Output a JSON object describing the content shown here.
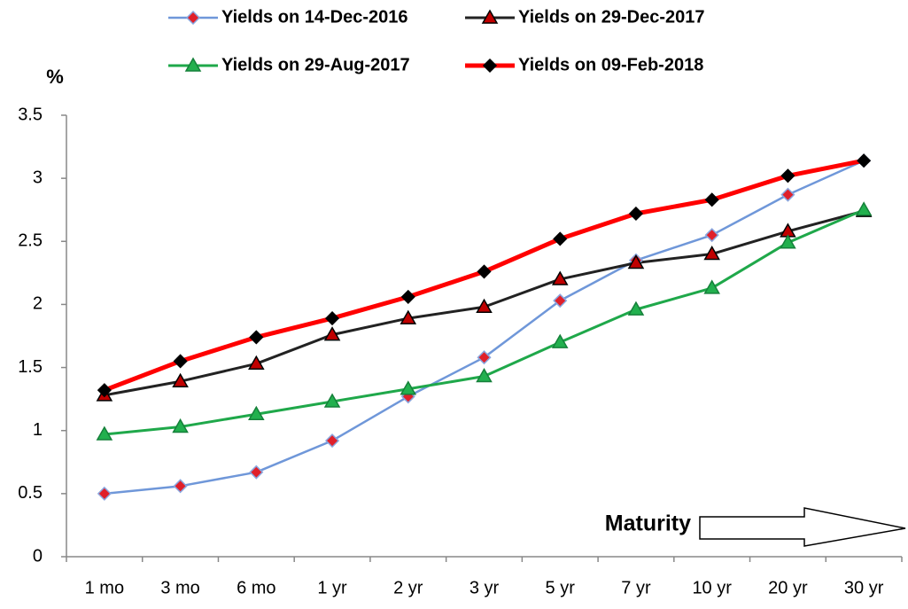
{
  "chart_data": {
    "type": "line",
    "ylabel": "%",
    "annotation": "Maturity",
    "categories": [
      "1 mo",
      "3 mo",
      "6 mo",
      "1 yr",
      "2 yr",
      "3 yr",
      "5 yr",
      "7 yr",
      "10 yr",
      "20 yr",
      "30 yr"
    ],
    "series": [
      {
        "name": "Yields on 14-Dec-2016",
        "color": "#6f97d9",
        "width": 2.5,
        "marker": "diamond",
        "marker_color": "#e0202a",
        "marker_edge": "#8aa6de",
        "values": [
          0.5,
          0.56,
          0.67,
          0.92,
          1.27,
          1.58,
          2.03,
          2.35,
          2.55,
          2.87,
          3.14
        ]
      },
      {
        "name": "Yields on 29-Dec-2017",
        "color": "#222222",
        "width": 3,
        "marker": "triangle",
        "marker_color": "#c00000",
        "marker_edge": "#000000",
        "values": [
          1.28,
          1.39,
          1.53,
          1.76,
          1.89,
          1.98,
          2.2,
          2.33,
          2.4,
          2.58,
          2.74
        ]
      },
      {
        "name": "Yields on 29-Aug-2017",
        "color": "#1fa84a",
        "width": 3,
        "marker": "triangle",
        "marker_color": "#22b04e",
        "marker_edge": "#15803a",
        "values": [
          0.97,
          1.03,
          1.13,
          1.23,
          1.33,
          1.43,
          1.7,
          1.96,
          2.13,
          2.49,
          2.75
        ]
      },
      {
        "name": "Yields on 09-Feb-2018",
        "color": "#ff0000",
        "width": 5,
        "marker": "diamond",
        "marker_color": "#000000",
        "marker_edge": "#000000",
        "values": [
          1.32,
          1.55,
          1.74,
          1.89,
          2.06,
          2.26,
          2.52,
          2.72,
          2.83,
          3.02,
          3.14
        ]
      }
    ],
    "ylim": [
      0,
      3.5
    ],
    "yticks": [
      0,
      0.5,
      1,
      1.5,
      2,
      2.5,
      3,
      3.5
    ],
    "grid": false,
    "legend": "top"
  }
}
